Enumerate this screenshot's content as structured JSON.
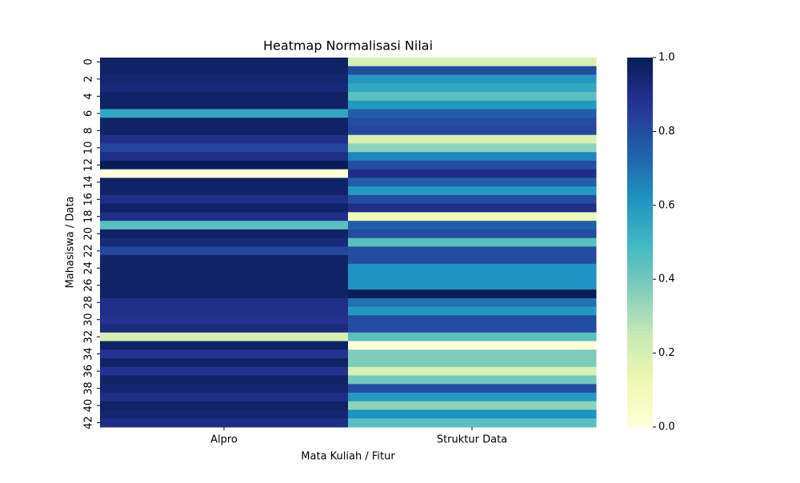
{
  "chart_data": {
    "type": "heatmap",
    "title": "Heatmap Normalisasi Nilai",
    "x_label": "Mata Kuliah / Fitur",
    "y_label": "Mahasiswa / Data",
    "columns": [
      "Alpro",
      "Struktur Data"
    ],
    "rows": [
      0,
      null,
      2,
      null,
      4,
      null,
      6,
      null,
      8,
      null,
      10,
      null,
      12,
      null,
      14,
      null,
      16,
      null,
      18,
      null,
      20,
      null,
      22,
      null,
      24,
      null,
      26,
      null,
      28,
      null,
      30,
      null,
      32,
      null,
      34,
      null,
      36,
      null,
      38,
      null,
      40,
      null,
      42
    ],
    "values": [
      [
        0.97,
        0.2
      ],
      [
        0.97,
        0.8
      ],
      [
        0.95,
        0.6
      ],
      [
        0.93,
        0.55
      ],
      [
        0.97,
        0.45
      ],
      [
        0.97,
        0.6
      ],
      [
        0.55,
        0.75
      ],
      [
        0.97,
        0.8
      ],
      [
        0.97,
        0.82
      ],
      [
        0.9,
        0.2
      ],
      [
        0.82,
        0.35
      ],
      [
        0.9,
        0.65
      ],
      [
        1.0,
        0.8
      ],
      [
        0.0,
        0.9
      ],
      [
        0.97,
        0.75
      ],
      [
        0.97,
        0.6
      ],
      [
        0.9,
        0.8
      ],
      [
        0.97,
        0.9
      ],
      [
        0.9,
        0.1
      ],
      [
        0.45,
        0.75
      ],
      [
        0.97,
        0.8
      ],
      [
        0.93,
        0.45
      ],
      [
        0.82,
        0.8
      ],
      [
        0.97,
        0.8
      ],
      [
        0.97,
        0.62
      ],
      [
        0.97,
        0.62
      ],
      [
        0.97,
        0.62
      ],
      [
        0.97,
        1.0
      ],
      [
        0.9,
        0.7
      ],
      [
        0.9,
        0.6
      ],
      [
        0.88,
        0.8
      ],
      [
        0.92,
        0.8
      ],
      [
        0.2,
        0.45
      ],
      [
        0.97,
        0.0
      ],
      [
        0.88,
        0.38
      ],
      [
        0.97,
        0.38
      ],
      [
        0.88,
        0.2
      ],
      [
        0.97,
        0.4
      ],
      [
        0.95,
        0.8
      ],
      [
        0.9,
        0.6
      ],
      [
        0.97,
        0.35
      ],
      [
        0.95,
        0.62
      ],
      [
        0.9,
        0.45
      ]
    ],
    "colormap": [
      "#ffffd9",
      "#edf8b1",
      "#c7e9b4",
      "#7fcdbb",
      "#41b6c4",
      "#1d91c0",
      "#225ea8",
      "#253494",
      "#081d58"
    ],
    "clim": [
      0,
      1
    ],
    "cticks": [
      {
        "value": 0,
        "label": "0.0"
      },
      {
        "value": 0.2,
        "label": "0.2"
      },
      {
        "value": 0.4,
        "label": "0.4"
      },
      {
        "value": 0.6,
        "label": "0.6"
      },
      {
        "value": 0.8,
        "label": "0.8"
      },
      {
        "value": 1,
        "label": "1.0"
      }
    ]
  }
}
